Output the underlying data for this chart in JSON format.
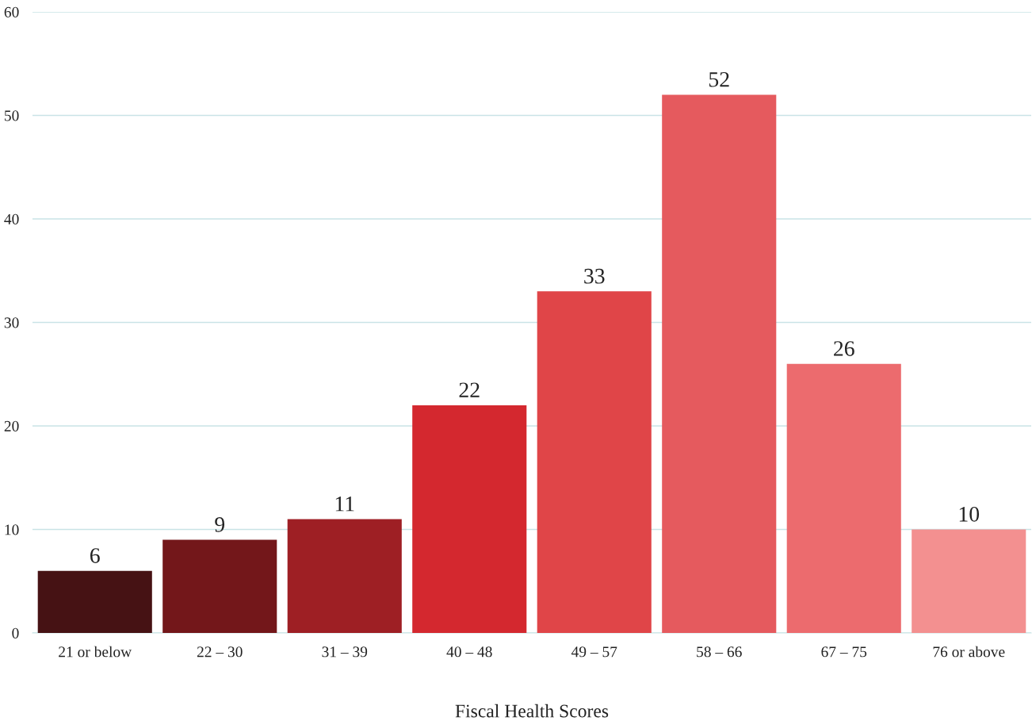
{
  "chart_data": {
    "type": "bar",
    "xlabel": "Fiscal Health Scores",
    "categories": [
      "21 or below",
      "22 – 30",
      "31 – 39",
      "40 – 48",
      "49 – 57",
      "58 – 66",
      "67 – 75",
      "76 or above"
    ],
    "values": [
      6,
      9,
      11,
      22,
      33,
      52,
      26,
      10
    ],
    "colors": [
      "#461214",
      "#73171a",
      "#9e1f24",
      "#d4282f",
      "#e04548",
      "#e55a5e",
      "#ec6b6e",
      "#f39090"
    ],
    "ylim": [
      0,
      60
    ],
    "yticks": [
      0,
      10,
      20,
      30,
      40,
      50,
      60
    ],
    "grid": "y",
    "data_labels": true
  }
}
